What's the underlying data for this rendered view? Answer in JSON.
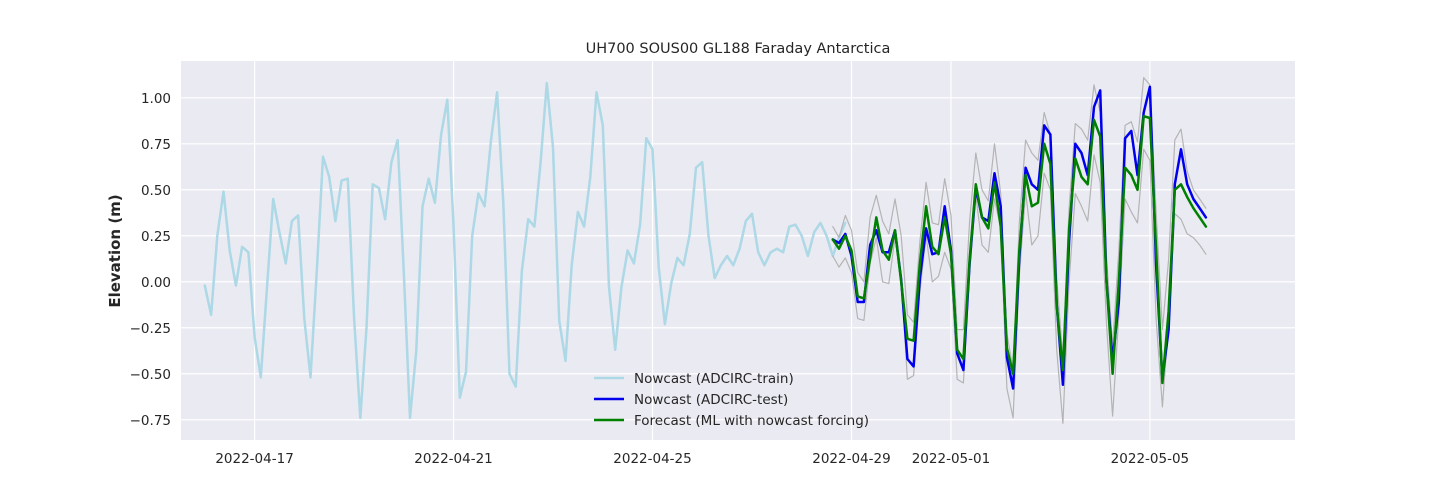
{
  "chart_data": {
    "type": "line",
    "title": "UH700 SOUS00 GL188 Faraday Antarctica",
    "xlabel": "",
    "ylabel": "Elevation (m)",
    "x_type": "date",
    "xlim": [
      "2022-04-15T12:30",
      "2022-05-07T22:00"
    ],
    "ylim": [
      -0.86,
      1.2
    ],
    "xticks": [
      {
        "value": "2022-04-17",
        "label": "2022-04-17"
      },
      {
        "value": "2022-04-21",
        "label": "2022-04-21"
      },
      {
        "value": "2022-04-25",
        "label": "2022-04-25"
      },
      {
        "value": "2022-04-29",
        "label": "2022-04-29"
      },
      {
        "value": "2022-05-01",
        "label": "2022-05-01"
      },
      {
        "value": "2022-05-05",
        "label": "2022-05-05"
      }
    ],
    "yticks": [
      {
        "value": 1.0,
        "label": "1.00"
      },
      {
        "value": 0.75,
        "label": "0.75"
      },
      {
        "value": 0.5,
        "label": "0.50"
      },
      {
        "value": 0.25,
        "label": "0.25"
      },
      {
        "value": 0.0,
        "label": "0.00"
      },
      {
        "value": -0.25,
        "label": "−0.25"
      },
      {
        "value": -0.5,
        "label": "−0.50"
      },
      {
        "value": -0.75,
        "label": "−0.75"
      }
    ],
    "grid": true,
    "background": "#eaeaf2",
    "legend": {
      "placement": "bottom-center"
    },
    "series": [
      {
        "name": "Nowcast (ADCIRC-train)",
        "color": "#add8e6",
        "width": 2.5,
        "in_legend": true,
        "x": [
          "2022-04-16T00:00",
          "2022-04-16T03:00",
          "2022-04-16T06:00",
          "2022-04-16T09:00",
          "2022-04-16T12:00",
          "2022-04-16T15:00",
          "2022-04-16T18:00",
          "2022-04-16T21:00",
          "2022-04-17T00:00",
          "2022-04-17T03:00",
          "2022-04-17T06:00",
          "2022-04-17T09:00",
          "2022-04-17T12:00",
          "2022-04-17T15:00",
          "2022-04-17T18:00",
          "2022-04-17T21:00",
          "2022-04-18T00:00",
          "2022-04-18T03:00",
          "2022-04-18T06:00",
          "2022-04-18T09:00",
          "2022-04-18T12:00",
          "2022-04-18T15:00",
          "2022-04-18T18:00",
          "2022-04-18T21:00",
          "2022-04-19T00:00",
          "2022-04-19T03:00",
          "2022-04-19T06:00",
          "2022-04-19T09:00",
          "2022-04-19T12:00",
          "2022-04-19T15:00",
          "2022-04-19T18:00",
          "2022-04-19T21:00",
          "2022-04-20T00:00",
          "2022-04-20T03:00",
          "2022-04-20T06:00",
          "2022-04-20T09:00",
          "2022-04-20T12:00",
          "2022-04-20T15:00",
          "2022-04-20T18:00",
          "2022-04-20T21:00",
          "2022-04-21T00:00",
          "2022-04-21T03:00",
          "2022-04-21T06:00",
          "2022-04-21T09:00",
          "2022-04-21T12:00",
          "2022-04-21T15:00",
          "2022-04-21T18:00",
          "2022-04-21T21:00",
          "2022-04-22T00:00",
          "2022-04-22T03:00",
          "2022-04-22T06:00",
          "2022-04-22T09:00",
          "2022-04-22T12:00",
          "2022-04-22T15:00",
          "2022-04-22T18:00",
          "2022-04-22T21:00",
          "2022-04-23T00:00",
          "2022-04-23T03:00",
          "2022-04-23T06:00",
          "2022-04-23T09:00",
          "2022-04-23T12:00",
          "2022-04-23T15:00",
          "2022-04-23T18:00",
          "2022-04-23T21:00",
          "2022-04-24T00:00",
          "2022-04-24T03:00",
          "2022-04-24T06:00",
          "2022-04-24T09:00",
          "2022-04-24T12:00",
          "2022-04-24T15:00",
          "2022-04-24T18:00",
          "2022-04-24T21:00",
          "2022-04-25T00:00",
          "2022-04-25T03:00",
          "2022-04-25T06:00",
          "2022-04-25T09:00",
          "2022-04-25T12:00",
          "2022-04-25T15:00",
          "2022-04-25T18:00",
          "2022-04-25T21:00",
          "2022-04-26T00:00",
          "2022-04-26T03:00",
          "2022-04-26T06:00",
          "2022-04-26T09:00",
          "2022-04-26T12:00",
          "2022-04-26T15:00",
          "2022-04-26T18:00",
          "2022-04-26T21:00",
          "2022-04-27T00:00",
          "2022-04-27T03:00",
          "2022-04-27T06:00",
          "2022-04-27T09:00",
          "2022-04-27T12:00",
          "2022-04-27T15:00",
          "2022-04-27T18:00",
          "2022-04-27T21:00",
          "2022-04-28T00:00",
          "2022-04-28T03:00",
          "2022-04-28T06:00",
          "2022-04-28T09:00",
          "2022-04-28T12:00",
          "2022-04-28T15:00",
          "2022-04-28T18:00",
          "2022-04-28T21:00"
        ],
        "y": [
          -0.02,
          -0.18,
          0.25,
          0.49,
          0.17,
          -0.02,
          0.19,
          0.16,
          -0.3,
          -0.52,
          -0.03,
          0.45,
          0.27,
          0.1,
          0.33,
          0.36,
          -0.2,
          -0.52,
          0.06,
          0.68,
          0.57,
          0.33,
          0.55,
          0.56,
          -0.2,
          -0.74,
          -0.25,
          0.53,
          0.51,
          0.34,
          0.65,
          0.77,
          0.05,
          -0.74,
          -0.38,
          0.41,
          0.56,
          0.43,
          0.8,
          0.99,
          0.31,
          -0.63,
          -0.49,
          0.25,
          0.48,
          0.41,
          0.76,
          1.03,
          0.43,
          -0.5,
          -0.57,
          0.06,
          0.34,
          0.3,
          0.65,
          1.08,
          0.73,
          -0.21,
          -0.43,
          0.09,
          0.38,
          0.3,
          0.57,
          1.03,
          0.85,
          -0.03,
          -0.37,
          -0.03,
          0.17,
          0.1,
          0.31,
          0.78,
          0.72,
          0.08,
          -0.23,
          -0.01,
          0.13,
          0.09,
          0.26,
          0.62,
          0.65,
          0.25,
          0.02,
          0.09,
          0.14,
          0.09,
          0.18,
          0.33,
          0.37,
          0.16,
          0.09,
          0.16,
          0.18,
          0.16,
          0.3,
          0.31,
          0.25,
          0.14,
          0.27,
          0.32,
          0.25,
          0.14,
          0.24,
          0.32
        ]
      },
      {
        "name": "",
        "color": "#b4b4b4",
        "width": 1.2,
        "in_legend": false,
        "x": [
          "2022-04-28T15:00",
          "2022-04-28T18:00",
          "2022-04-28T21:00",
          "2022-04-29T00:00",
          "2022-04-29T03:00",
          "2022-04-29T06:00",
          "2022-04-29T09:00",
          "2022-04-29T12:00",
          "2022-04-29T15:00",
          "2022-04-29T18:00",
          "2022-04-29T21:00",
          "2022-04-30T00:00",
          "2022-04-30T03:00",
          "2022-04-30T06:00",
          "2022-04-30T09:00",
          "2022-04-30T12:00",
          "2022-04-30T15:00",
          "2022-04-30T18:00",
          "2022-04-30T21:00",
          "2022-05-01T00:00",
          "2022-05-01T03:00",
          "2022-05-01T06:00",
          "2022-05-01T09:00",
          "2022-05-01T12:00",
          "2022-05-01T15:00",
          "2022-05-01T18:00",
          "2022-05-01T21:00",
          "2022-05-02T00:00",
          "2022-05-02T03:00",
          "2022-05-02T06:00",
          "2022-05-02T09:00",
          "2022-05-02T12:00",
          "2022-05-02T15:00",
          "2022-05-02T18:00",
          "2022-05-02T21:00",
          "2022-05-03T00:00",
          "2022-05-03T03:00",
          "2022-05-03T06:00",
          "2022-05-03T09:00",
          "2022-05-03T12:00",
          "2022-05-03T15:00",
          "2022-05-03T18:00",
          "2022-05-03T21:00",
          "2022-05-04T00:00",
          "2022-05-04T03:00",
          "2022-05-04T06:00",
          "2022-05-04T09:00",
          "2022-05-04T12:00",
          "2022-05-04T15:00",
          "2022-05-04T18:00",
          "2022-05-04T21:00",
          "2022-05-05T00:00",
          "2022-05-05T03:00",
          "2022-05-05T06:00",
          "2022-05-05T09:00",
          "2022-05-05T12:00",
          "2022-05-05T15:00",
          "2022-05-05T18:00",
          "2022-05-05T21:00",
          "2022-05-06T00:00",
          "2022-05-06T03:00"
        ],
        "y": [
          0.3,
          0.24,
          0.36,
          0.28,
          0.05,
          0.0,
          0.35,
          0.47,
          0.33,
          0.26,
          0.45,
          0.25,
          -0.18,
          -0.22,
          0.22,
          0.54,
          0.32,
          0.31,
          0.56,
          0.36,
          -0.26,
          -0.26,
          0.33,
          0.7,
          0.5,
          0.44,
          0.75,
          0.48,
          -0.28,
          -0.48,
          0.32,
          0.77,
          0.7,
          0.66,
          0.92,
          0.8,
          0.02,
          -0.42,
          0.4,
          0.86,
          0.83,
          0.77,
          1.07,
          0.92,
          0.14,
          -0.35,
          0.17,
          0.85,
          0.87,
          0.76,
          1.11,
          1.07,
          0.38,
          -0.26,
          0.12,
          0.77,
          0.83,
          0.6,
          0.5,
          0.45,
          0.4
        ]
      },
      {
        "name": "",
        "color": "#b4b4b4",
        "width": 1.2,
        "in_legend": false,
        "x": [
          "2022-04-28T15:00",
          "2022-04-28T18:00",
          "2022-04-28T21:00",
          "2022-04-29T00:00",
          "2022-04-29T03:00",
          "2022-04-29T06:00",
          "2022-04-29T09:00",
          "2022-04-29T12:00",
          "2022-04-29T15:00",
          "2022-04-29T18:00",
          "2022-04-29T21:00",
          "2022-04-30T00:00",
          "2022-04-30T03:00",
          "2022-04-30T06:00",
          "2022-04-30T09:00",
          "2022-04-30T12:00",
          "2022-04-30T15:00",
          "2022-04-30T18:00",
          "2022-04-30T21:00",
          "2022-05-01T00:00",
          "2022-05-01T03:00",
          "2022-05-01T06:00",
          "2022-05-01T09:00",
          "2022-05-01T12:00",
          "2022-05-01T15:00",
          "2022-05-01T18:00",
          "2022-05-01T21:00",
          "2022-05-02T00:00",
          "2022-05-02T03:00",
          "2022-05-02T06:00",
          "2022-05-02T09:00",
          "2022-05-02T12:00",
          "2022-05-02T15:00",
          "2022-05-02T18:00",
          "2022-05-02T21:00",
          "2022-05-03T00:00",
          "2022-05-03T03:00",
          "2022-05-03T06:00",
          "2022-05-03T09:00",
          "2022-05-03T12:00",
          "2022-05-03T15:00",
          "2022-05-03T18:00",
          "2022-05-03T21:00",
          "2022-05-04T00:00",
          "2022-05-04T03:00",
          "2022-05-04T06:00",
          "2022-05-04T09:00",
          "2022-05-04T12:00",
          "2022-05-04T15:00",
          "2022-05-04T18:00",
          "2022-05-04T21:00",
          "2022-05-05T00:00",
          "2022-05-05T03:00",
          "2022-05-05T06:00",
          "2022-05-05T09:00",
          "2022-05-05T12:00",
          "2022-05-05T15:00",
          "2022-05-05T18:00",
          "2022-05-05T21:00",
          "2022-05-06T00:00",
          "2022-05-06T03:00"
        ],
        "y": [
          0.14,
          0.08,
          0.13,
          0.05,
          -0.2,
          -0.21,
          0.1,
          0.24,
          0.0,
          -0.01,
          0.24,
          0.03,
          -0.53,
          -0.51,
          -0.05,
          0.25,
          0.0,
          0.03,
          0.16,
          0.07,
          -0.53,
          -0.55,
          0.05,
          0.47,
          0.2,
          0.16,
          0.45,
          0.29,
          -0.58,
          -0.74,
          0.03,
          0.49,
          0.2,
          0.25,
          0.59,
          0.5,
          -0.37,
          -0.77,
          0.0,
          0.48,
          0.41,
          0.33,
          0.69,
          0.54,
          -0.22,
          -0.73,
          -0.18,
          0.45,
          0.38,
          0.32,
          0.72,
          0.66,
          -0.2,
          -0.68,
          -0.21,
          0.37,
          0.34,
          0.26,
          0.24,
          0.2,
          0.15
        ]
      },
      {
        "name": "Nowcast (ADCIRC-test)",
        "color": "#0000ee",
        "width": 2.5,
        "in_legend": true,
        "x": [
          "2022-04-28T15:00",
          "2022-04-28T18:00",
          "2022-04-28T21:00",
          "2022-04-29T00:00",
          "2022-04-29T03:00",
          "2022-04-29T06:00",
          "2022-04-29T09:00",
          "2022-04-29T12:00",
          "2022-04-29T15:00",
          "2022-04-29T18:00",
          "2022-04-29T21:00",
          "2022-04-30T00:00",
          "2022-04-30T03:00",
          "2022-04-30T06:00",
          "2022-04-30T09:00",
          "2022-04-30T12:00",
          "2022-04-30T15:00",
          "2022-04-30T18:00",
          "2022-04-30T21:00",
          "2022-05-01T00:00",
          "2022-05-01T03:00",
          "2022-05-01T06:00",
          "2022-05-01T09:00",
          "2022-05-01T12:00",
          "2022-05-01T15:00",
          "2022-05-01T18:00",
          "2022-05-01T21:00",
          "2022-05-02T00:00",
          "2022-05-02T03:00",
          "2022-05-02T06:00",
          "2022-05-02T09:00",
          "2022-05-02T12:00",
          "2022-05-02T15:00",
          "2022-05-02T18:00",
          "2022-05-02T21:00",
          "2022-05-03T00:00",
          "2022-05-03T03:00",
          "2022-05-03T06:00",
          "2022-05-03T09:00",
          "2022-05-03T12:00",
          "2022-05-03T15:00",
          "2022-05-03T18:00",
          "2022-05-03T21:00",
          "2022-05-04T00:00",
          "2022-05-04T03:00",
          "2022-05-04T06:00",
          "2022-05-04T09:00",
          "2022-05-04T12:00",
          "2022-05-04T15:00",
          "2022-05-04T18:00",
          "2022-05-04T21:00",
          "2022-05-05T00:00",
          "2022-05-05T03:00",
          "2022-05-05T06:00",
          "2022-05-05T09:00",
          "2022-05-05T12:00",
          "2022-05-05T15:00",
          "2022-05-05T18:00",
          "2022-05-05T21:00",
          "2022-05-06T00:00",
          "2022-05-06T03:00"
        ],
        "y": [
          0.23,
          0.21,
          0.26,
          0.14,
          -0.11,
          -0.11,
          0.2,
          0.28,
          0.16,
          0.16,
          0.28,
          0.01,
          -0.42,
          -0.46,
          0.02,
          0.29,
          0.15,
          0.16,
          0.41,
          0.17,
          -0.39,
          -0.48,
          0.1,
          0.51,
          0.35,
          0.33,
          0.59,
          0.41,
          -0.41,
          -0.58,
          0.13,
          0.62,
          0.53,
          0.5,
          0.85,
          0.8,
          -0.12,
          -0.56,
          0.22,
          0.75,
          0.7,
          0.58,
          0.95,
          1.04,
          0.01,
          -0.43,
          -0.11,
          0.78,
          0.82,
          0.58,
          0.92,
          1.06,
          0.09,
          -0.53,
          -0.26,
          0.53,
          0.72,
          0.53,
          0.45,
          0.4,
          0.35
        ]
      },
      {
        "name": "Forecast (ML with nowcast forcing)",
        "color": "#008000",
        "width": 2.5,
        "in_legend": true,
        "x": [
          "2022-04-28T15:00",
          "2022-04-28T18:00",
          "2022-04-28T21:00",
          "2022-04-29T00:00",
          "2022-04-29T03:00",
          "2022-04-29T06:00",
          "2022-04-29T09:00",
          "2022-04-29T12:00",
          "2022-04-29T15:00",
          "2022-04-29T18:00",
          "2022-04-29T21:00",
          "2022-04-30T00:00",
          "2022-04-30T03:00",
          "2022-04-30T06:00",
          "2022-04-30T09:00",
          "2022-04-30T12:00",
          "2022-04-30T15:00",
          "2022-04-30T18:00",
          "2022-04-30T21:00",
          "2022-05-01T00:00",
          "2022-05-01T03:00",
          "2022-05-01T06:00",
          "2022-05-01T09:00",
          "2022-05-01T12:00",
          "2022-05-01T15:00",
          "2022-05-01T18:00",
          "2022-05-01T21:00",
          "2022-05-02T00:00",
          "2022-05-02T03:00",
          "2022-05-02T06:00",
          "2022-05-02T09:00",
          "2022-05-02T12:00",
          "2022-05-02T15:00",
          "2022-05-02T18:00",
          "2022-05-02T21:00",
          "2022-05-03T00:00",
          "2022-05-03T03:00",
          "2022-05-03T06:00",
          "2022-05-03T09:00",
          "2022-05-03T12:00",
          "2022-05-03T15:00",
          "2022-05-03T18:00",
          "2022-05-03T21:00",
          "2022-05-04T00:00",
          "2022-05-04T03:00",
          "2022-05-04T06:00",
          "2022-05-04T09:00",
          "2022-05-04T12:00",
          "2022-05-04T15:00",
          "2022-05-04T18:00",
          "2022-05-04T21:00",
          "2022-05-05T00:00",
          "2022-05-05T03:00",
          "2022-05-05T06:00",
          "2022-05-05T09:00",
          "2022-05-05T12:00",
          "2022-05-05T15:00",
          "2022-05-05T18:00",
          "2022-05-05T21:00",
          "2022-05-06T00:00",
          "2022-05-06T03:00"
        ],
        "y": [
          0.23,
          0.18,
          0.25,
          0.17,
          -0.08,
          -0.09,
          0.13,
          0.35,
          0.17,
          0.12,
          0.28,
          0.0,
          -0.31,
          -0.32,
          0.1,
          0.41,
          0.19,
          0.15,
          0.35,
          0.15,
          -0.37,
          -0.42,
          0.12,
          0.53,
          0.35,
          0.29,
          0.54,
          0.3,
          -0.36,
          -0.5,
          0.17,
          0.58,
          0.41,
          0.43,
          0.75,
          0.64,
          -0.13,
          -0.48,
          0.29,
          0.67,
          0.57,
          0.53,
          0.88,
          0.79,
          0.01,
          -0.5,
          0.0,
          0.62,
          0.58,
          0.5,
          0.9,
          0.89,
          0.18,
          -0.55,
          -0.16,
          0.5,
          0.53,
          0.46,
          0.4,
          0.35,
          0.3
        ]
      }
    ]
  }
}
